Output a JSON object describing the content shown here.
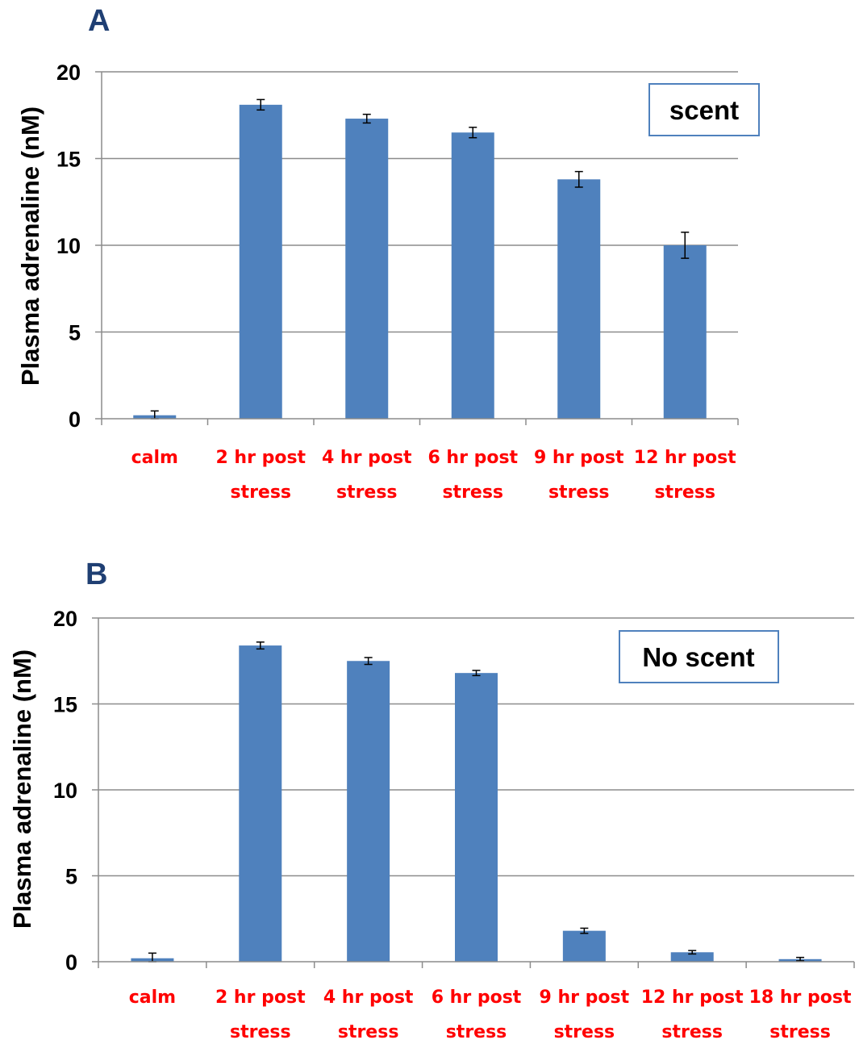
{
  "chart_data": [
    {
      "type": "bar",
      "panel": "A",
      "annotation": "scent",
      "ylabel": "Plasma adrenaline (nM)",
      "ylim": [
        0,
        20
      ],
      "yticks": [
        "0",
        "5",
        "10",
        "15",
        "20"
      ],
      "grid": true,
      "bar_color": "#4f81bd",
      "tick_color": "#ff0000",
      "categories": [
        [
          "calm"
        ],
        [
          "2 hr post",
          "stress"
        ],
        [
          "4 hr post",
          "stress"
        ],
        [
          "6 hr post",
          "stress"
        ],
        [
          "9 hr post",
          "stress"
        ],
        [
          "12 hr post",
          "stress"
        ]
      ],
      "values": [
        0.2,
        18.1,
        17.3,
        16.5,
        13.8,
        10.0
      ],
      "errors": [
        0.25,
        0.3,
        0.25,
        0.3,
        0.45,
        0.75
      ]
    },
    {
      "type": "bar",
      "panel": "B",
      "annotation": "No scent",
      "ylabel": "Plasma adrenaline (nM)",
      "ylim": [
        0,
        20
      ],
      "yticks": [
        "0",
        "5",
        "10",
        "15",
        "20"
      ],
      "grid": true,
      "bar_color": "#4f81bd",
      "tick_color": "#ff0000",
      "categories": [
        [
          "calm"
        ],
        [
          "2 hr post",
          "stress"
        ],
        [
          "4 hr post",
          "stress"
        ],
        [
          "6 hr post",
          "stress"
        ],
        [
          "9 hr post",
          "stress"
        ],
        [
          "12 hr post",
          "stress"
        ],
        [
          "18 hr post",
          "stress"
        ]
      ],
      "values": [
        0.2,
        18.4,
        17.5,
        16.8,
        1.8,
        0.55,
        0.15
      ],
      "errors": [
        0.3,
        0.2,
        0.2,
        0.15,
        0.15,
        0.1,
        0.1
      ]
    }
  ]
}
